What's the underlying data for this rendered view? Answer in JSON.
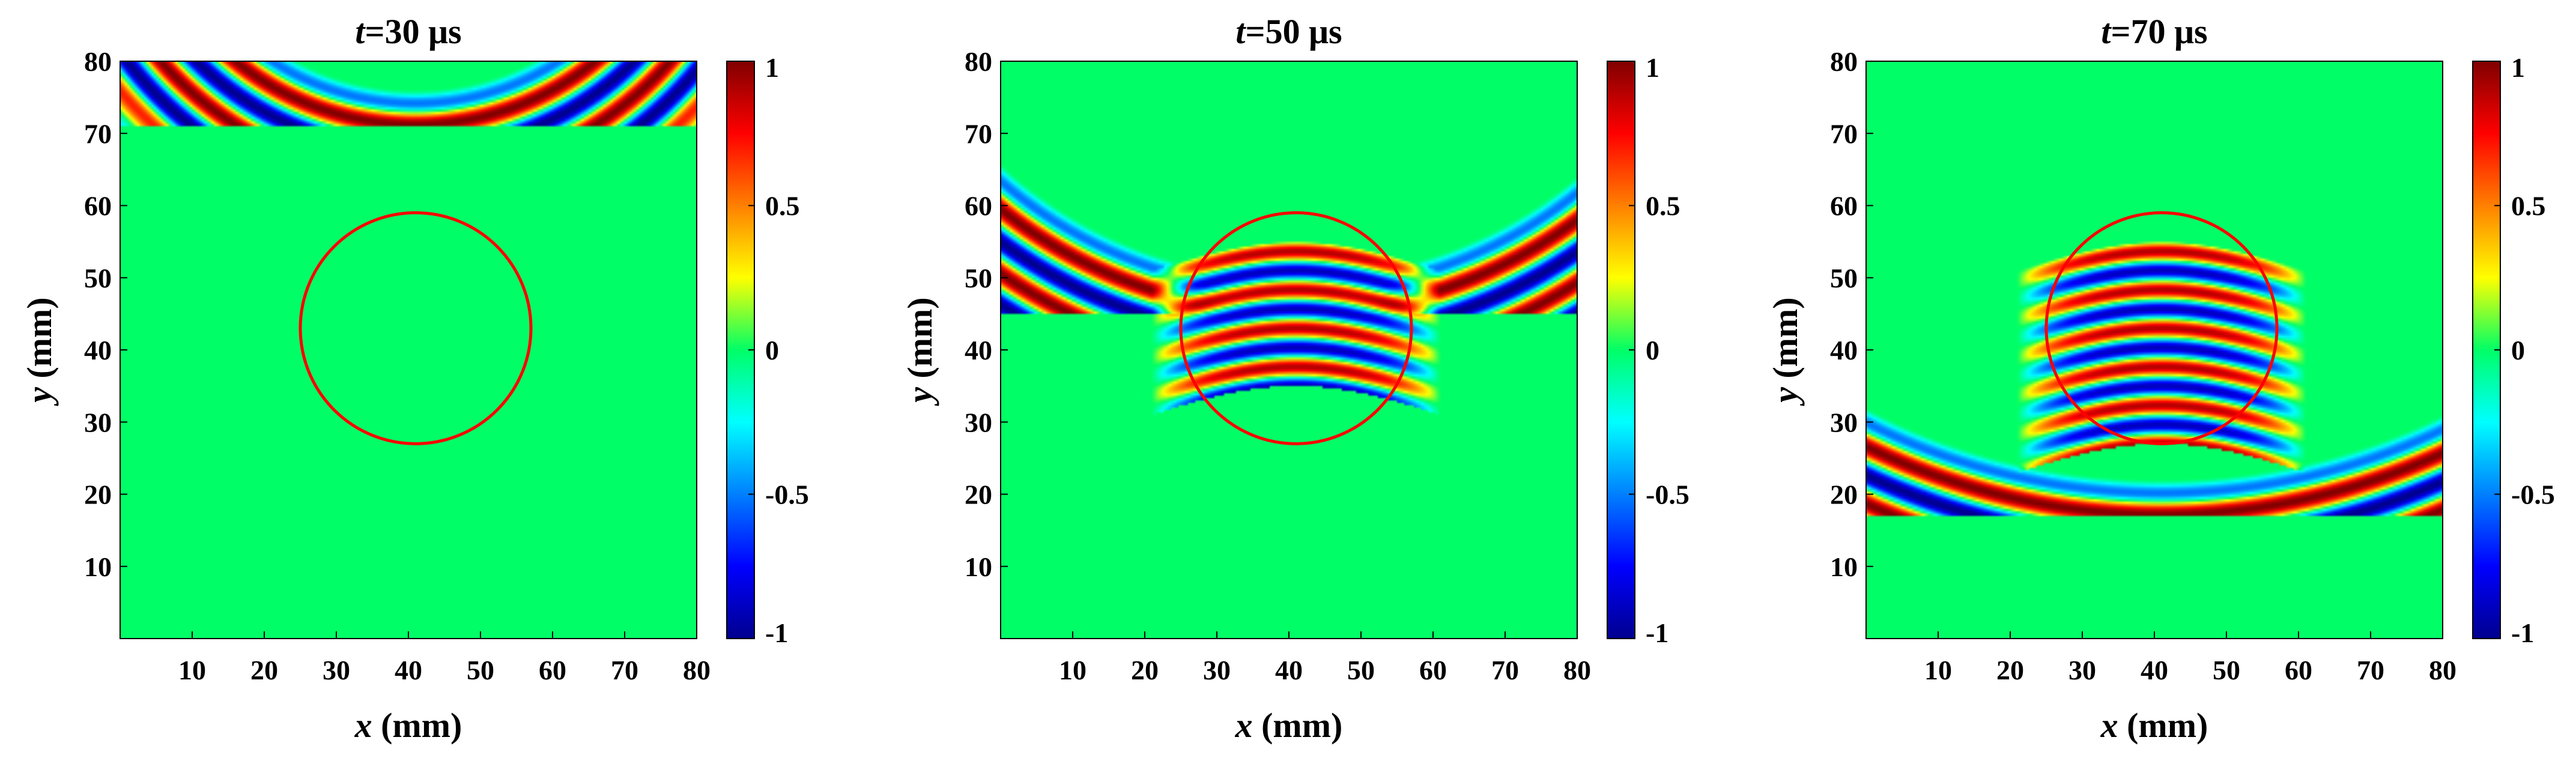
{
  "chart_data": [
    {
      "type": "heatmap",
      "title_var": "t",
      "title_rest": "=30 μs",
      "xlabel_var": "x",
      "xlabel_rest": " (mm)",
      "ylabel_var": "y",
      "ylabel_rest": " (mm)",
      "xlim": [
        0,
        80
      ],
      "ylim": [
        0,
        80
      ],
      "xticks": [
        10,
        20,
        30,
        40,
        50,
        60,
        70,
        80
      ],
      "yticks": [
        10,
        20,
        30,
        40,
        50,
        60,
        70,
        80
      ],
      "source": {
        "x": 41,
        "y": 111
      },
      "wavelength": 7.2,
      "front_radius": 38,
      "n_fronts": 3,
      "transmitted": 0,
      "circle": {
        "cx": 41,
        "cy": 43,
        "r": 16,
        "color": "#ff0000"
      },
      "colorbar": {
        "range": [
          -1,
          1
        ],
        "ticks": [
          1,
          0.5,
          0,
          -0.5,
          -1
        ],
        "tick_labels": [
          "1",
          "0.5",
          "0",
          "-0.5",
          "-1"
        ]
      }
    },
    {
      "type": "heatmap",
      "title_var": "t",
      "title_rest": "=50 μs",
      "xlabel_var": "x",
      "xlabel_rest": " (mm)",
      "ylabel_var": "y",
      "ylabel_rest": " (mm)",
      "xlim": [
        0,
        80
      ],
      "ylim": [
        0,
        80
      ],
      "xticks": [
        10,
        20,
        30,
        40,
        50,
        60,
        70,
        80
      ],
      "yticks": [
        10,
        20,
        30,
        40,
        50,
        60,
        70,
        80
      ],
      "source": {
        "x": 41,
        "y": 111
      },
      "wavelength": 7.2,
      "front_radius": 64,
      "n_fronts": 9,
      "transmitted": 1,
      "circle": {
        "cx": 41,
        "cy": 43,
        "r": 16,
        "color": "#ff0000"
      },
      "colorbar": {
        "range": [
          -1,
          1
        ],
        "ticks": [
          1,
          0.5,
          0,
          -0.5,
          -1
        ],
        "tick_labels": [
          "1",
          "0.5",
          "0",
          "-0.5",
          "-1"
        ]
      }
    },
    {
      "type": "heatmap",
      "title_var": "t",
      "title_rest": "=70 μs",
      "xlabel_var": "x",
      "xlabel_rest": " (mm)",
      "ylabel_var": "y",
      "ylabel_rest": " (mm)",
      "xlim": [
        0,
        80
      ],
      "ylim": [
        0,
        80
      ],
      "xticks": [
        10,
        20,
        30,
        40,
        50,
        60,
        70,
        80
      ],
      "yticks": [
        10,
        20,
        30,
        40,
        50,
        60,
        70,
        80
      ],
      "source": {
        "x": 41,
        "y": 111
      },
      "wavelength": 7.2,
      "front_radius": 92,
      "n_fronts": 11,
      "transmitted": 2,
      "circle": {
        "cx": 41,
        "cy": 43,
        "r": 16,
        "color": "#ff0000"
      },
      "colorbar": {
        "range": [
          -1,
          1
        ],
        "ticks": [
          1,
          0.5,
          0,
          -0.5,
          -1
        ],
        "tick_labels": [
          "1",
          "0.5",
          "0",
          "-0.5",
          "-1"
        ]
      }
    }
  ]
}
